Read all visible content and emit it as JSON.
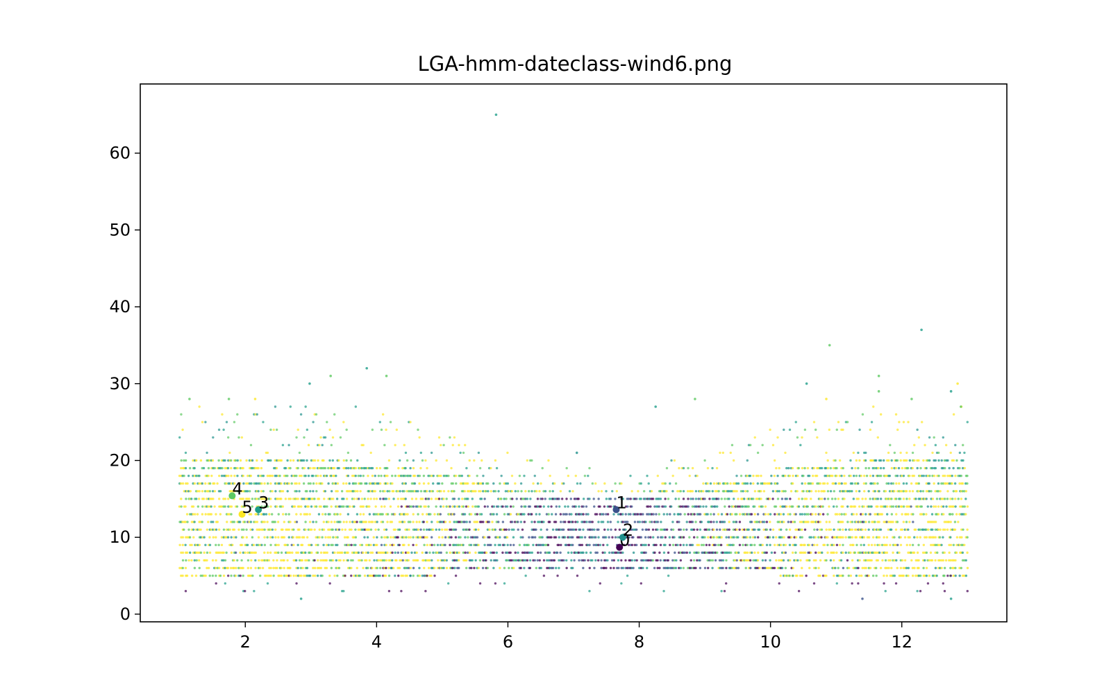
{
  "chart_data": {
    "type": "scatter",
    "title": "LGA-hmm-dateclass-wind6.png",
    "xlabel": "",
    "ylabel": "",
    "xlim": [
      0.4,
      13.6
    ],
    "ylim": [
      -1,
      69
    ],
    "x_ticks": [
      2,
      4,
      6,
      8,
      10,
      12
    ],
    "y_ticks": [
      0,
      10,
      20,
      30,
      40,
      50,
      60
    ],
    "grid": false,
    "legend": "none",
    "colormap": "viridis",
    "class_colors": [
      "#440154",
      "#3b528b",
      "#21918c",
      "#1f9e89",
      "#5ec962",
      "#fde725"
    ],
    "centroids": [
      {
        "label": "0",
        "x": 7.7,
        "y": 8.7,
        "cls": 0
      },
      {
        "label": "1",
        "x": 7.65,
        "y": 13.6,
        "cls": 1
      },
      {
        "label": "2",
        "x": 7.75,
        "y": 10.0,
        "cls": 2
      },
      {
        "label": "3",
        "x": 2.2,
        "y": 13.6,
        "cls": 3
      },
      {
        "label": "4",
        "x": 1.8,
        "y": 15.4,
        "cls": 4
      },
      {
        "label": "5",
        "x": 1.95,
        "y": 13.0,
        "cls": 5
      }
    ],
    "outliers": [
      {
        "x": 5.82,
        "y": 65,
        "cls": 3
      },
      {
        "x": 12.3,
        "y": 37,
        "cls": 3
      },
      {
        "x": 10.9,
        "y": 35,
        "cls": 4
      },
      {
        "x": 3.85,
        "y": 32,
        "cls": 3
      },
      {
        "x": 4.15,
        "y": 31,
        "cls": 4
      },
      {
        "x": 3.3,
        "y": 31,
        "cls": 4
      },
      {
        "x": 11.65,
        "y": 31,
        "cls": 4
      },
      {
        "x": 2.98,
        "y": 30,
        "cls": 3
      },
      {
        "x": 10.55,
        "y": 30,
        "cls": 3
      },
      {
        "x": 12.85,
        "y": 30,
        "cls": 5
      },
      {
        "x": 12.75,
        "y": 29,
        "cls": 3
      },
      {
        "x": 11.65,
        "y": 29,
        "cls": 4
      },
      {
        "x": 1.15,
        "y": 28,
        "cls": 4
      },
      {
        "x": 1.75,
        "y": 28,
        "cls": 4
      },
      {
        "x": 2.15,
        "y": 28,
        "cls": 5
      },
      {
        "x": 8.85,
        "y": 28,
        "cls": 4
      },
      {
        "x": 10.85,
        "y": 28,
        "cls": 5
      },
      {
        "x": 12.15,
        "y": 28,
        "cls": 4
      },
      {
        "x": 8.25,
        "y": 27,
        "cls": 3
      },
      {
        "x": 12.9,
        "y": 27,
        "cls": 4
      },
      {
        "x": 7.05,
        "y": 21,
        "cls": 2
      },
      {
        "x": 2.85,
        "y": 2,
        "cls": 3
      },
      {
        "x": 11.4,
        "y": 2,
        "cls": 1
      },
      {
        "x": 12.75,
        "y": 2,
        "cls": 3
      }
    ]
  }
}
